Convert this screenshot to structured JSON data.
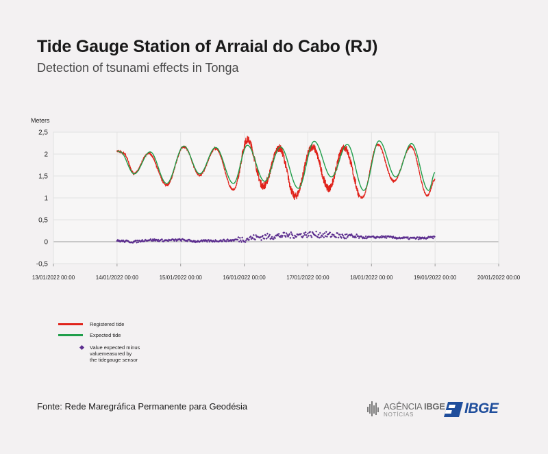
{
  "header": {
    "title": "Tide Gauge Station of Arraial do Cabo (RJ)",
    "subtitle": "Detection of tsunami effects in Tonga"
  },
  "chart_data": {
    "type": "line",
    "y_unit_label": "Meters",
    "ylim": [
      -0.5,
      2.5
    ],
    "y_ticks": [
      "2,5",
      "2",
      "1,5",
      "1",
      "0,5",
      "0",
      "-0,5"
    ],
    "y_tick_values": [
      2.5,
      2,
      1.5,
      1,
      0.5,
      0,
      -0.5
    ],
    "x_ticks": [
      "13/01/2022 00:00",
      "14/01/2022 00:00",
      "15/01/2022 00:00",
      "16/01/2022 00:00",
      "17/01/2022 00:00",
      "18/01/2022 00:00",
      "19/01/2022 00:00",
      "20/01/2022 00:00"
    ],
    "x_range_days": [
      0,
      7
    ],
    "grid": true,
    "series": [
      {
        "name": "Registered tide",
        "color": "#e0231b",
        "style": "line",
        "points": [
          [
            1.0,
            2.07
          ],
          [
            1.1,
            2.02
          ],
          [
            1.27,
            1.56
          ],
          [
            1.5,
            2.02
          ],
          [
            1.78,
            1.29
          ],
          [
            2.05,
            2.17
          ],
          [
            2.3,
            1.52
          ],
          [
            2.55,
            2.13
          ],
          [
            2.83,
            1.18
          ],
          [
            3.05,
            2.33
          ],
          [
            3.3,
            1.27
          ],
          [
            3.55,
            2.14
          ],
          [
            3.8,
            1.03
          ],
          [
            4.07,
            2.17
          ],
          [
            4.33,
            1.22
          ],
          [
            4.57,
            2.16
          ],
          [
            4.85,
            1.0
          ],
          [
            5.1,
            2.22
          ],
          [
            5.35,
            1.38
          ],
          [
            5.62,
            2.17
          ],
          [
            5.88,
            1.05
          ],
          [
            6.0,
            1.43
          ]
        ]
      },
      {
        "name": "Expected tide",
        "color": "#1f9e4a",
        "style": "line",
        "points": [
          [
            1.0,
            2.07
          ],
          [
            1.05,
            2.05
          ],
          [
            1.27,
            1.55
          ],
          [
            1.52,
            2.05
          ],
          [
            1.78,
            1.33
          ],
          [
            2.05,
            2.18
          ],
          [
            2.3,
            1.55
          ],
          [
            2.55,
            2.15
          ],
          [
            2.83,
            1.33
          ],
          [
            3.05,
            2.2
          ],
          [
            3.32,
            1.38
          ],
          [
            3.57,
            2.16
          ],
          [
            3.85,
            1.22
          ],
          [
            4.1,
            2.29
          ],
          [
            4.37,
            1.48
          ],
          [
            4.62,
            2.22
          ],
          [
            4.88,
            1.17
          ],
          [
            5.12,
            2.3
          ],
          [
            5.38,
            1.48
          ],
          [
            5.63,
            2.24
          ],
          [
            5.9,
            1.17
          ],
          [
            6.0,
            1.58
          ]
        ]
      },
      {
        "name": "Value expected minus valuemeasured by the tidegauge sensor",
        "legend_lines": [
          "Value expected minus",
          "valuemeasured by",
          "the tidegauge sensor"
        ],
        "color": "#5b2d8e",
        "style": "scatter",
        "points": [
          [
            1.0,
            0.02
          ],
          [
            1.25,
            0.0
          ],
          [
            1.5,
            0.04
          ],
          [
            1.75,
            0.03
          ],
          [
            2.0,
            0.04
          ],
          [
            2.25,
            0.01
          ],
          [
            2.5,
            0.02
          ],
          [
            2.75,
            0.03
          ],
          [
            3.0,
            0.06
          ],
          [
            3.2,
            0.1
          ],
          [
            3.4,
            0.12
          ],
          [
            3.6,
            0.14
          ],
          [
            3.8,
            0.15
          ],
          [
            4.0,
            0.17
          ],
          [
            4.2,
            0.16
          ],
          [
            4.4,
            0.15
          ],
          [
            4.6,
            0.12
          ],
          [
            4.8,
            0.1
          ],
          [
            5.0,
            0.1
          ],
          [
            5.2,
            0.11
          ],
          [
            5.4,
            0.09
          ],
          [
            5.6,
            0.08
          ],
          [
            5.8,
            0.08
          ],
          [
            6.0,
            0.1
          ]
        ]
      }
    ]
  },
  "footer": {
    "source": "Fonte: Rede Maregráfica Permanente para Geodésia",
    "agencia_name_a": "AGÊNCIA",
    "agencia_name_b": "IBGE",
    "agencia_sub": "NOTÍCIAS",
    "ibge_logo": "IBGE"
  }
}
